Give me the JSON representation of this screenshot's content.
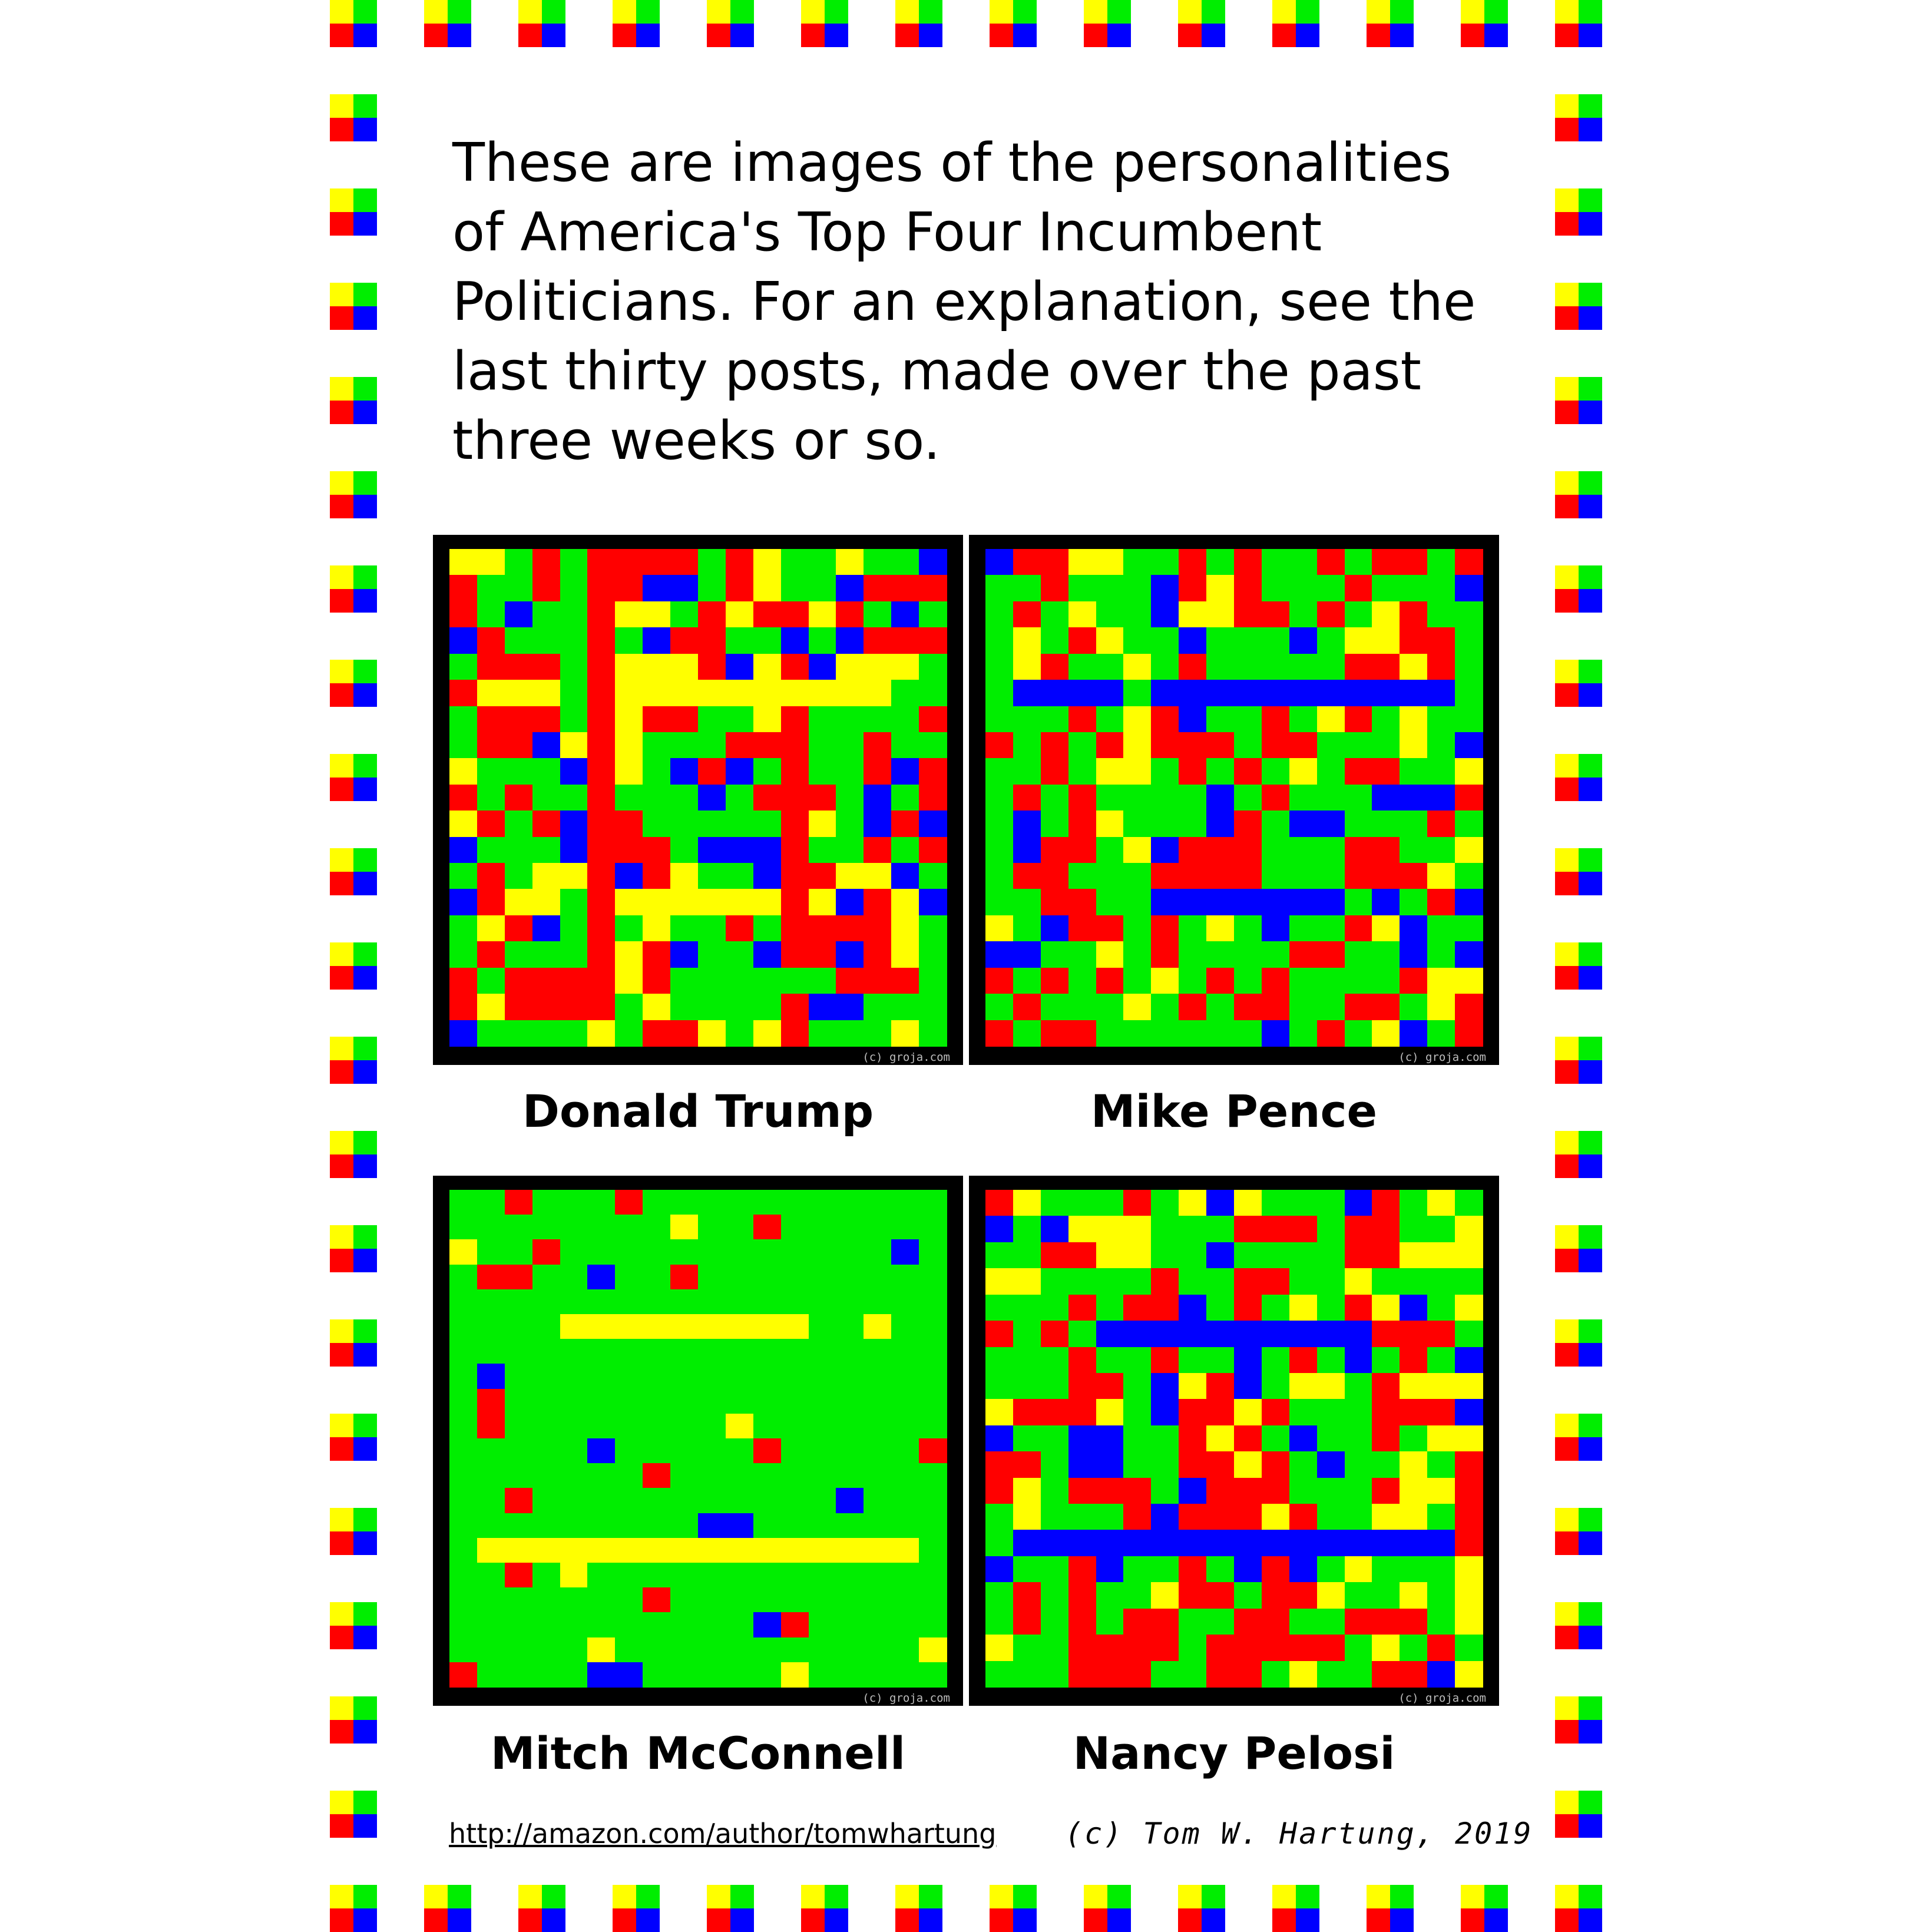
{
  "intro_text": "These are images of the personalities\nof America's Top Four Incumbent\nPoliticians.  For an explanation, see the\nlast thirty posts, made over the past\nthree weeks or so.",
  "colors": {
    "Y": "#ffff00",
    "G": "#00ee00",
    "R": "#ff0000",
    "B": "#0000ff",
    "frame": "#000000"
  },
  "panels": [
    {
      "caption": "Donald Trump",
      "watermark": "(c) groja.com",
      "grid": [
        "YYGRGRRRRGRYGGYGGB",
        "RGGRGRRBBGRYGGBRRR",
        "RGBGGRYYGRYRRYRGBG",
        "BRGGGRGBRRGGBGBRRR",
        "GRRRGRYYYRBYRBYYYG",
        "RYYYGRYYYYYYYYYYGG",
        "GRRRGRYRRGGYRGGGGR",
        "GRRBYRYGGGRRRGGRGG",
        "YGGGBRYGBRBGRGGRBR",
        "RGRGGRGGGBGRRRGBGR",
        "YRGRBRRGGGGGRYGBRB",
        "BGGGBRRRGBBBRGGRGR",
        "GRGYYRBRYGGBRRYYBG",
        "BRYYGRYYYYYYRYBRYB",
        "GYRBGRGYGGRGRRRRYG",
        "GRGGGRYRBGGBRRBRYG",
        "RGRRRRYRGGGGGGRRRG",
        "RYRRRRGYGGGGRBBGGG",
        "BGGGGYGRRYGYRGGGYG"
      ]
    },
    {
      "caption": "Mike Pence",
      "watermark": "(c) groja.com",
      "grid": [
        "BRRYYGGRGRGGRGRRGR",
        "GGRGGGBRYRGGGRGGGB",
        "GRGYGGBYYRRGRGYRGG",
        "GYGRYGGBGGGBGYYRRG",
        "GYRGGYGRGGGGGRRYRG",
        "GBBBBGBBBBBBBBBBBG",
        "GGGRGYRBGGRGYRGYGG",
        "RGRGRYRRRGRRGGGYGB",
        "GGRGYYGRGRGYGRRGGY",
        "GRGRGGGGBGRGGGBBBR",
        "GBGRYGGGBRGBBGGGRG",
        "GBRRGYBRRRGGGRRGGY",
        "GRRGGGRRRRGGGRRRYG",
        "GGRRGGBBBBBBBGBGRB",
        "YGBRRGRGYGBGGRYBGG",
        "BBGGYGRGGGGRRGGBGB",
        "RGRGRGYGRGRGGGGRYY",
        "GRGGGYGRGRRGGRRGYR",
        "RGRRGGGGGGBGRGYBGR"
      ]
    },
    {
      "caption": "Mitch McConnell",
      "watermark": "(c) groja.com",
      "grid": [
        "GGRGGGRGGGGGGGGGGG",
        "GGGGGGGGYGGRGGGGGG",
        "YGGRGGGGGGGGGGGGBG",
        "GRRGGBGGRGGGGGGGGG",
        "GGGGGGGGGGGGGGGGGG",
        "GGGGYYYYYYYYYGGYGG",
        "GGGGGGGGGGGGGGGGGG",
        "GBGGGGGGGGGGGGGGGG",
        "GRGGGGGGGGGGGGGGGG",
        "GRGGGGGGGGYGGGGGGG",
        "GGGGGBGGGGGRGGGGGR",
        "GGGGGGGRGGGGGGGGGG",
        "GGRGGGGGGGGGGGBGGG",
        "GGGGGGGGGBBGGGGGGG",
        "GYYYYYYYYYYYYYYYYG",
        "GGRGYGGGGGGGGGGGGG",
        "GGGGGGGRGGGGGGGGGG",
        "GGGGGGGGGGGBRGGGGG",
        "GGGGGYGGGGGGGGGGGY",
        "RGGGGBBGGGGGYGGGGG"
      ]
    },
    {
      "caption": "Nancy Pelosi",
      "watermark": "(c) groja.com",
      "grid": [
        "RYGGGRGYBYGGGBRGYG",
        "BGBYYYGGGRRRGRRGGY",
        "GGRRYYGGBGGGGRRYYY",
        "YYGGGGRGGRRGGYGGGG",
        "GGGRGRRBGRGYGRYBGY",
        "RGRGBBBBBBBBBBRRRG",
        "GGGRGGRGGBGRGBGRGB",
        "GGGRRGBYRBGYYGRYYY",
        "YRRRYGBRRYRGGGRRRB",
        "BGGBBGGRYRGBGGRGYY",
        "RRGBBGGRRYRGBGGYGR",
        "RYGRRRGBRRRGGGRYYR",
        "GYGGGRBRRRYRGGYYGR",
        "GBBBBBBBBBBBBBBBBR",
        "BGGRBGGRGBRBGYGGGY",
        "GRGRGGYRRGRRYGGYGY",
        "GRGRGRRGGRRGGRRRGY",
        "YGGRRRRGRRRRRGYGRG",
        "GGGRRRGGRRGYGGRRBY"
      ]
    }
  ],
  "footer": {
    "link_text": "http://amazon.com/author/tomwhartung",
    "copyright": "(c) Tom W. Hartung, 2019"
  }
}
